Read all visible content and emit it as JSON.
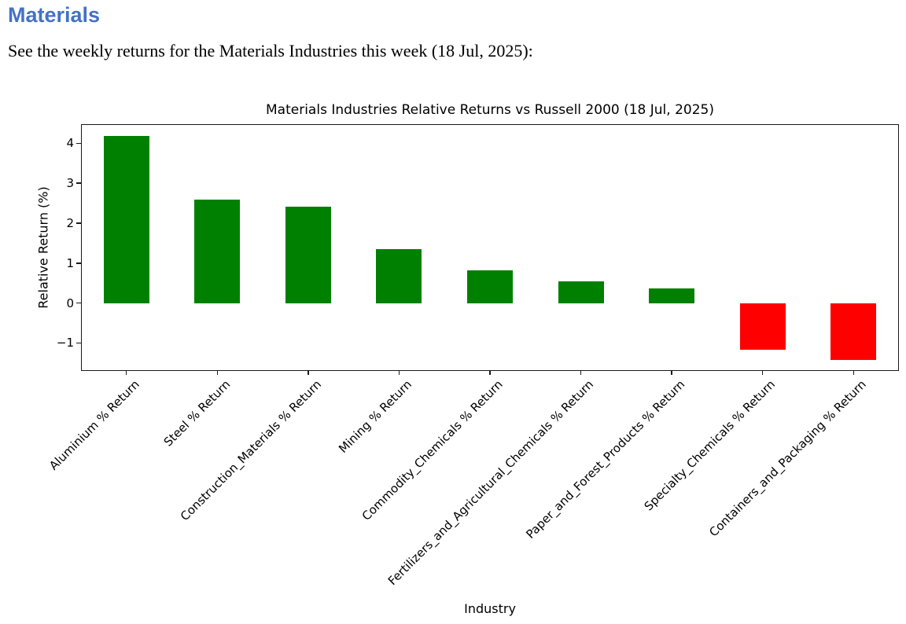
{
  "page": {
    "heading": "Materials",
    "heading_color": "#4472C4",
    "subtitle": "See the weekly returns for the Materials Industries this week (18 Jul, 2025):"
  },
  "chart_data": {
    "type": "bar",
    "title": "Materials Industries Relative Returns vs Russell 2000 (18 Jul, 2025)",
    "xlabel": "Industry",
    "ylabel": "Relative Return (%)",
    "categories": [
      "Aluminium % Return",
      "Steel % Return",
      "Construction_Materials % Return",
      "Mining % Return",
      "Commodity_Chemicals % Return",
      "Fertilizers_and_Agricultural_Chemicals % Return",
      "Paper_and_Forest_Products % Return",
      "Specialty_Chemicals % Return",
      "Containers_and_Packaging % Return"
    ],
    "values": [
      4.18,
      2.6,
      2.41,
      1.35,
      0.82,
      0.55,
      0.37,
      -1.17,
      -1.43
    ],
    "yticks": [
      4,
      3,
      2,
      1,
      0,
      -1
    ],
    "ylim": [
      -1.7,
      4.48
    ],
    "colors": {
      "positive": "#008000",
      "negative": "#ff0000",
      "axis": "#000000"
    },
    "grid": false,
    "legend_position": "none"
  }
}
